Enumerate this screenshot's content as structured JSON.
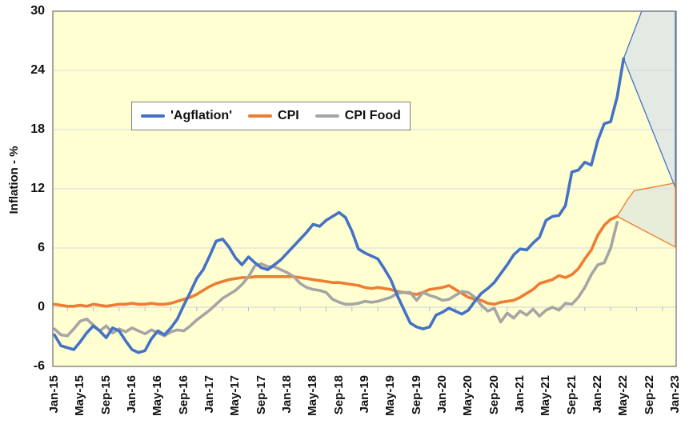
{
  "chart_data": {
    "type": "line",
    "title": "",
    "y_axis": {
      "label": "Inflation - %",
      "ticks": [
        30,
        24,
        18,
        12,
        6,
        0,
        -6
      ],
      "ylim": [
        -6,
        30
      ],
      "grid": true
    },
    "x_axis": {
      "tick_labels": [
        "Jan-15",
        "May-15",
        "Sep-15",
        "Jan-16",
        "May-16",
        "Sep-16",
        "Jan-17",
        "May-17",
        "Sep-17",
        "Jan-18",
        "May-18",
        "Sep-18",
        "Jan-19",
        "May-19",
        "Sep-19",
        "Jan-20",
        "May-20",
        "Sep-20",
        "Jan-21",
        "May-21",
        "Sep-21",
        "Jan-22",
        "May-22",
        "Sep-22",
        "Jan-23"
      ],
      "months_per_tick": 4,
      "data_start": "Jan-15",
      "data_frequency": "monthly"
    },
    "legend_position": "top-center",
    "plot_bg": "#FFFFD2",
    "grid_color": "#D6D9E2",
    "border_color": "#808080",
    "series": [
      {
        "name": "'Agflation'",
        "color": "#4472C4",
        "values": [
          -2.8,
          -3.9,
          -4.1,
          -4.3,
          -3.5,
          -2.6,
          -1.9,
          -2.4,
          -3.1,
          -2.1,
          -2.4,
          -3.4,
          -4.3,
          -4.6,
          -4.4,
          -3.2,
          -2.4,
          -2.8,
          -2.1,
          -1.2,
          0.2,
          1.5,
          2.9,
          3.8,
          5.2,
          6.7,
          6.9,
          6.1,
          5.0,
          4.3,
          5.1,
          4.5,
          4.0,
          3.8,
          4.3,
          4.8,
          5.5,
          6.2,
          6.9,
          7.6,
          8.4,
          8.2,
          8.8,
          9.2,
          9.6,
          9.1,
          7.7,
          5.9,
          5.5,
          5.2,
          4.9,
          3.9,
          2.8,
          1.2,
          -0.2,
          -1.6,
          -2.0,
          -2.2,
          -2.0,
          -0.8,
          -0.5,
          -0.1,
          -0.4,
          -0.7,
          -0.3,
          0.6,
          1.4,
          1.9,
          2.5,
          3.4,
          4.3,
          5.3,
          5.9,
          5.8,
          6.5,
          7.1,
          8.8,
          9.2,
          9.3,
          10.3,
          13.7,
          13.9,
          14.7,
          14.4,
          16.9,
          18.6,
          18.8,
          21.3,
          25.2
        ]
      },
      {
        "name": "CPI",
        "color": "#ED7D31",
        "values": [
          0.3,
          0.2,
          0.1,
          0.1,
          0.2,
          0.1,
          0.3,
          0.2,
          0.1,
          0.2,
          0.3,
          0.3,
          0.4,
          0.3,
          0.3,
          0.4,
          0.3,
          0.3,
          0.4,
          0.6,
          0.8,
          1.0,
          1.3,
          1.7,
          2.1,
          2.4,
          2.6,
          2.8,
          2.9,
          3.0,
          3.0,
          3.1,
          3.1,
          3.1,
          3.1,
          3.1,
          3.1,
          3.1,
          3.0,
          2.9,
          2.8,
          2.7,
          2.6,
          2.5,
          2.5,
          2.4,
          2.3,
          2.2,
          2.0,
          1.9,
          2.0,
          1.9,
          1.8,
          1.6,
          1.5,
          1.4,
          1.3,
          1.5,
          1.8,
          1.9,
          2.0,
          2.2,
          1.8,
          1.4,
          1.0,
          0.8,
          0.7,
          0.4,
          0.3,
          0.5,
          0.6,
          0.7,
          1.0,
          1.4,
          1.8,
          2.4,
          2.6,
          2.8,
          3.2,
          3.0,
          3.3,
          3.9,
          4.9,
          5.8,
          7.3,
          8.3,
          8.9,
          9.2
        ]
      },
      {
        "name": "CPI Food",
        "color": "#A5A5A5",
        "values": [
          -2.2,
          -2.8,
          -2.9,
          -2.2,
          -1.4,
          -1.2,
          -1.8,
          -2.4,
          -1.9,
          -2.6,
          -2.2,
          -2.5,
          -2.1,
          -2.4,
          -2.7,
          -2.3,
          -2.6,
          -2.9,
          -2.5,
          -2.3,
          -2.4,
          -1.9,
          -1.3,
          -0.8,
          -0.3,
          0.3,
          0.9,
          1.3,
          1.7,
          2.3,
          3.1,
          4.2,
          4.4,
          4.1,
          4.1,
          3.8,
          3.5,
          3.1,
          2.4,
          2.0,
          1.8,
          1.7,
          1.5,
          0.8,
          0.5,
          0.3,
          0.3,
          0.4,
          0.6,
          0.5,
          0.6,
          0.8,
          1.0,
          1.4,
          1.5,
          1.5,
          0.7,
          1.5,
          1.2,
          1.0,
          0.7,
          0.8,
          1.2,
          1.6,
          1.5,
          1.0,
          0.2,
          -0.4,
          -0.1,
          -1.5,
          -0.6,
          -1.1,
          -0.4,
          -0.8,
          -0.2,
          -0.9,
          -0.3,
          0.0,
          -0.3,
          0.4,
          0.3,
          1.0,
          2.0,
          3.3,
          4.3,
          4.5,
          6.0,
          8.6
        ]
      }
    ],
    "forecast_fans": [
      {
        "series": "'Agflation'",
        "color": "#4472C4",
        "fill": "#E3E9E3",
        "polygon_month_value": [
          [
            88,
            25.2
          ],
          [
            90.8,
            30
          ],
          [
            96,
            30
          ],
          [
            96,
            12.1
          ]
        ]
      },
      {
        "series": "CPI",
        "color": "#ED7D31",
        "fill": "#E8EDDA",
        "polygon_month_value": [
          [
            87,
            9.2
          ],
          [
            88.6,
            10.9
          ],
          [
            89.6,
            11.8
          ],
          [
            92,
            12.1
          ],
          [
            96,
            12.6
          ],
          [
            96,
            6.1
          ]
        ]
      }
    ]
  }
}
